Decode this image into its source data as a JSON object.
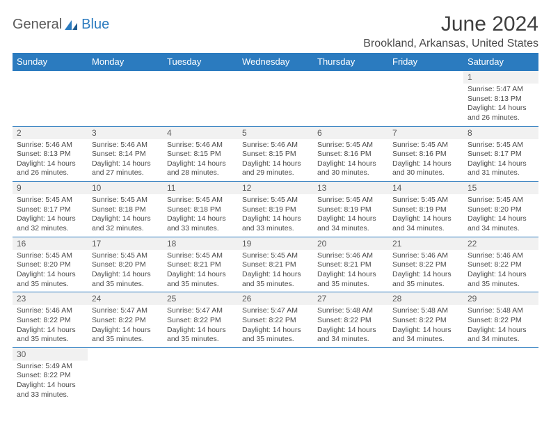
{
  "logo": {
    "part1": "General",
    "part2": "Blue"
  },
  "title": "June 2024",
  "location": "Brookland, Arkansas, United States",
  "colors": {
    "header_bg": "#2b7bbf",
    "header_fg": "#ffffff",
    "grid_line": "#2b7bbf",
    "daynum_bg": "#f1f1f1",
    "text": "#4a4a4a"
  },
  "weekdays": [
    "Sunday",
    "Monday",
    "Tuesday",
    "Wednesday",
    "Thursday",
    "Friday",
    "Saturday"
  ],
  "weeks": [
    {
      "nums": [
        "",
        "",
        "",
        "",
        "",
        "",
        "1"
      ],
      "cells": [
        "",
        "",
        "",
        "",
        "",
        "",
        "Sunrise: 5:47 AM|Sunset: 8:13 PM|Daylight: 14 hours and 26 minutes."
      ]
    },
    {
      "nums": [
        "2",
        "3",
        "4",
        "5",
        "6",
        "7",
        "8"
      ],
      "cells": [
        "Sunrise: 5:46 AM|Sunset: 8:13 PM|Daylight: 14 hours and 26 minutes.",
        "Sunrise: 5:46 AM|Sunset: 8:14 PM|Daylight: 14 hours and 27 minutes.",
        "Sunrise: 5:46 AM|Sunset: 8:15 PM|Daylight: 14 hours and 28 minutes.",
        "Sunrise: 5:46 AM|Sunset: 8:15 PM|Daylight: 14 hours and 29 minutes.",
        "Sunrise: 5:45 AM|Sunset: 8:16 PM|Daylight: 14 hours and 30 minutes.",
        "Sunrise: 5:45 AM|Sunset: 8:16 PM|Daylight: 14 hours and 30 minutes.",
        "Sunrise: 5:45 AM|Sunset: 8:17 PM|Daylight: 14 hours and 31 minutes."
      ]
    },
    {
      "nums": [
        "9",
        "10",
        "11",
        "12",
        "13",
        "14",
        "15"
      ],
      "cells": [
        "Sunrise: 5:45 AM|Sunset: 8:17 PM|Daylight: 14 hours and 32 minutes.",
        "Sunrise: 5:45 AM|Sunset: 8:18 PM|Daylight: 14 hours and 32 minutes.",
        "Sunrise: 5:45 AM|Sunset: 8:18 PM|Daylight: 14 hours and 33 minutes.",
        "Sunrise: 5:45 AM|Sunset: 8:19 PM|Daylight: 14 hours and 33 minutes.",
        "Sunrise: 5:45 AM|Sunset: 8:19 PM|Daylight: 14 hours and 34 minutes.",
        "Sunrise: 5:45 AM|Sunset: 8:19 PM|Daylight: 14 hours and 34 minutes.",
        "Sunrise: 5:45 AM|Sunset: 8:20 PM|Daylight: 14 hours and 34 minutes."
      ]
    },
    {
      "nums": [
        "16",
        "17",
        "18",
        "19",
        "20",
        "21",
        "22"
      ],
      "cells": [
        "Sunrise: 5:45 AM|Sunset: 8:20 PM|Daylight: 14 hours and 35 minutes.",
        "Sunrise: 5:45 AM|Sunset: 8:20 PM|Daylight: 14 hours and 35 minutes.",
        "Sunrise: 5:45 AM|Sunset: 8:21 PM|Daylight: 14 hours and 35 minutes.",
        "Sunrise: 5:45 AM|Sunset: 8:21 PM|Daylight: 14 hours and 35 minutes.",
        "Sunrise: 5:46 AM|Sunset: 8:21 PM|Daylight: 14 hours and 35 minutes.",
        "Sunrise: 5:46 AM|Sunset: 8:22 PM|Daylight: 14 hours and 35 minutes.",
        "Sunrise: 5:46 AM|Sunset: 8:22 PM|Daylight: 14 hours and 35 minutes."
      ]
    },
    {
      "nums": [
        "23",
        "24",
        "25",
        "26",
        "27",
        "28",
        "29"
      ],
      "cells": [
        "Sunrise: 5:46 AM|Sunset: 8:22 PM|Daylight: 14 hours and 35 minutes.",
        "Sunrise: 5:47 AM|Sunset: 8:22 PM|Daylight: 14 hours and 35 minutes.",
        "Sunrise: 5:47 AM|Sunset: 8:22 PM|Daylight: 14 hours and 35 minutes.",
        "Sunrise: 5:47 AM|Sunset: 8:22 PM|Daylight: 14 hours and 35 minutes.",
        "Sunrise: 5:48 AM|Sunset: 8:22 PM|Daylight: 14 hours and 34 minutes.",
        "Sunrise: 5:48 AM|Sunset: 8:22 PM|Daylight: 14 hours and 34 minutes.",
        "Sunrise: 5:48 AM|Sunset: 8:22 PM|Daylight: 14 hours and 34 minutes."
      ]
    },
    {
      "nums": [
        "30",
        "",
        "",
        "",
        "",
        "",
        ""
      ],
      "cells": [
        "Sunrise: 5:49 AM|Sunset: 8:22 PM|Daylight: 14 hours and 33 minutes.",
        "",
        "",
        "",
        "",
        "",
        ""
      ]
    }
  ]
}
